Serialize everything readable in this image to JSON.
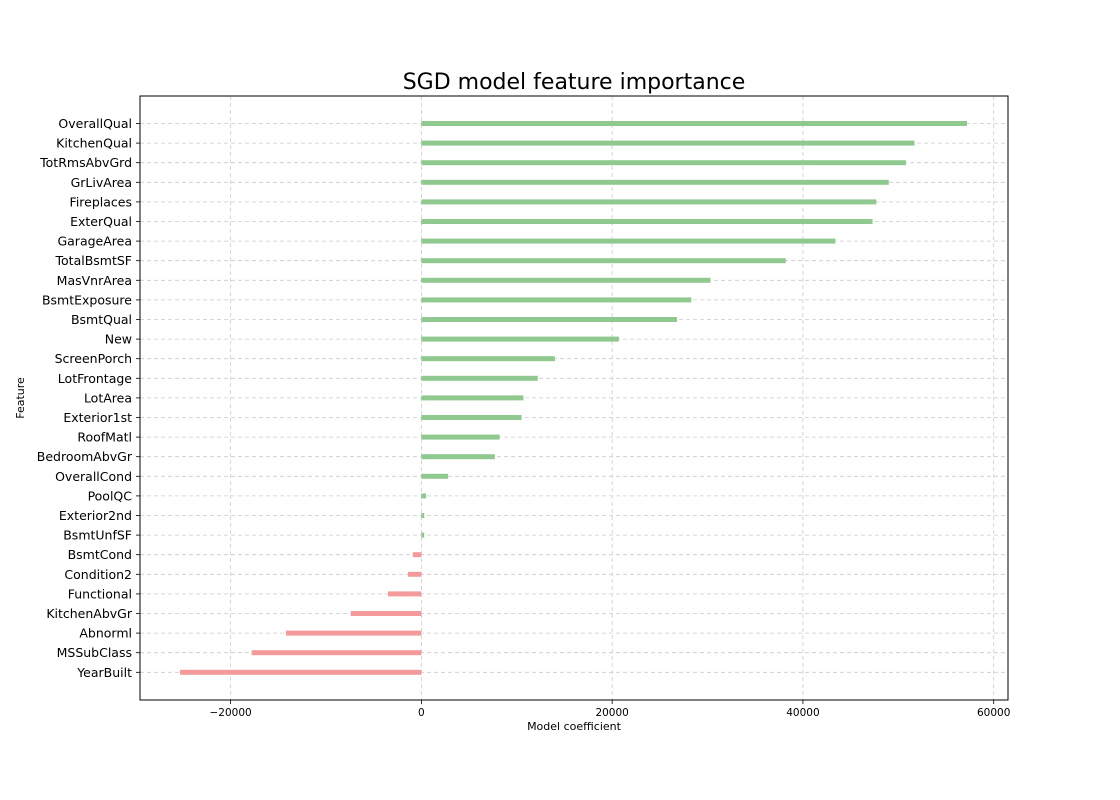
{
  "chart_data": {
    "type": "bar",
    "orientation": "horizontal",
    "title": "SGD model feature importance",
    "xlabel": "Model coefficient",
    "ylabel": "Feature",
    "xlim": [
      -29500,
      61500
    ],
    "xticks": [
      -20000,
      0,
      20000,
      40000,
      60000
    ],
    "xtick_labels": [
      "−20000",
      "0",
      "20000",
      "40000",
      "60000"
    ],
    "grid": true,
    "positive_color": "#8fc98f",
    "negative_color": "#f59a9a",
    "categories": [
      "OverallQual",
      "KitchenQual",
      "TotRmsAbvGrd",
      "GrLivArea",
      "Fireplaces",
      "ExterQual",
      "GarageArea",
      "TotalBsmtSF",
      "MasVnrArea",
      "BsmtExposure",
      "BsmtQual",
      "New",
      "ScreenPorch",
      "LotFrontage",
      "LotArea",
      "Exterior1st",
      "RoofMatl",
      "BedroomAbvGr",
      "OverallCond",
      "PoolQC",
      "Exterior2nd",
      "BsmtUnfSF",
      "BsmtCond",
      "Condition2",
      "Functional",
      "KitchenAbvGr",
      "Abnorml",
      "MSSubClass",
      "YearBuilt"
    ],
    "values": [
      57200,
      51700,
      50800,
      49000,
      47700,
      47300,
      43400,
      38200,
      30300,
      28300,
      26800,
      20700,
      14000,
      12200,
      10700,
      10500,
      8200,
      7700,
      2800,
      500,
      300,
      300,
      -900,
      -1400,
      -3500,
      -7400,
      -14200,
      -17800,
      -25300
    ]
  }
}
